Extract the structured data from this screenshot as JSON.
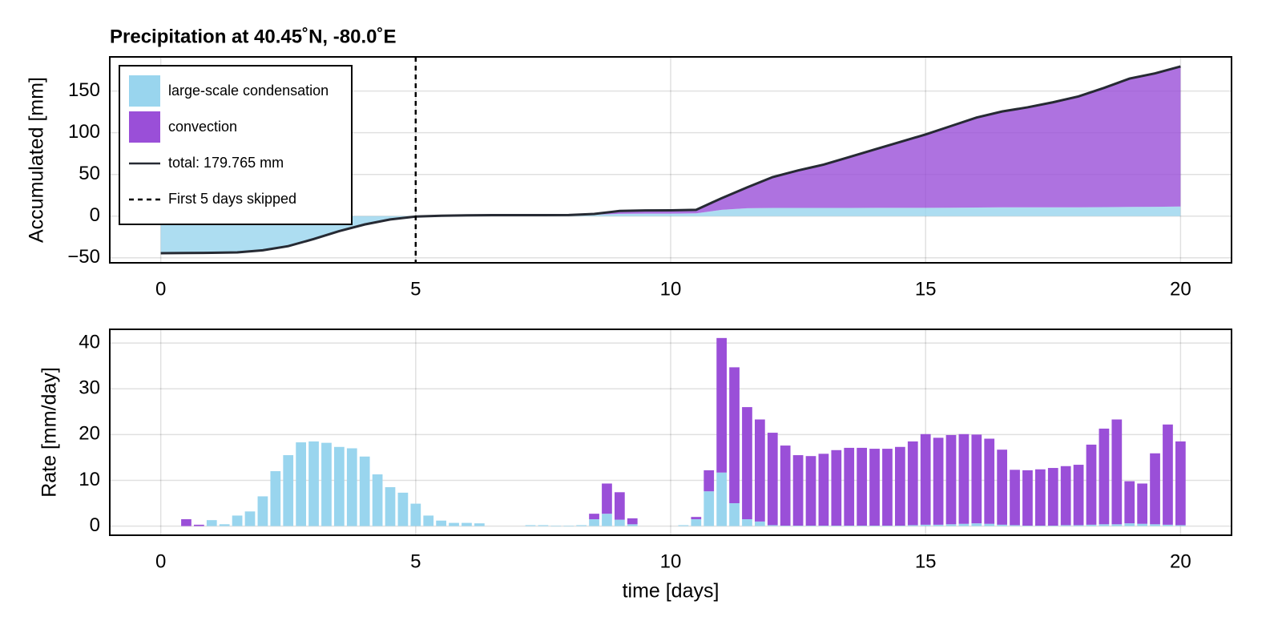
{
  "chart_data": [
    {
      "type": "area",
      "title": "Precipitation at 40.45˚N, -80.0˚E",
      "ylabel": "Accumulated [mm]",
      "x": [
        0,
        0.5,
        1,
        1.5,
        2,
        2.5,
        3,
        3.5,
        4,
        4.5,
        5,
        5.5,
        6,
        6.5,
        7,
        7.5,
        8,
        8.5,
        9,
        9.5,
        10,
        10.5,
        11,
        11.5,
        12,
        12.5,
        13,
        13.5,
        14,
        14.5,
        15,
        15.5,
        16,
        16.5,
        17,
        17.5,
        18,
        18.5,
        19,
        19.5,
        20
      ],
      "series": [
        {
          "name": "large-scale condensation",
          "kind": "area",
          "color": "#99d5ee",
          "values": [
            -44.5,
            -44.2,
            -44,
            -43.5,
            -41,
            -36,
            -27.5,
            -18,
            -10,
            -4,
            -0.5,
            0.5,
            1,
            1.2,
            1.2,
            1.2,
            1.3,
            1.8,
            2.7,
            3.0,
            3.0,
            3.3,
            7.5,
            9.5,
            9.8,
            9.8,
            9.8,
            9.8,
            9.9,
            9.9,
            10,
            10.1,
            10.3,
            10.5,
            10.5,
            10.6,
            10.6,
            10.8,
            11,
            11.2,
            11.5
          ]
        },
        {
          "name": "convection",
          "kind": "area",
          "color": "#9a4fd8",
          "values": [
            0,
            0,
            0,
            0,
            0,
            0,
            0,
            0,
            0,
            0,
            0,
            0,
            0,
            0,
            0,
            0,
            0,
            0.8,
            3.5,
            3.8,
            4,
            4.3,
            14,
            25,
            37,
            45,
            52,
            61,
            70,
            79,
            88,
            98,
            108,
            115,
            120,
            126,
            133,
            143,
            154,
            160,
            168
          ]
        },
        {
          "name": "total: 179.765 mm",
          "kind": "line",
          "color": "#262a33",
          "values": [
            -44.5,
            -44.2,
            -44,
            -43.5,
            -41,
            -36,
            -27.5,
            -18,
            -10,
            -4,
            -0.5,
            0.5,
            1,
            1.2,
            1.2,
            1.2,
            1.3,
            2.6,
            6.2,
            6.8,
            7,
            7.6,
            21.5,
            34.5,
            46.8,
            54.8,
            61.8,
            70.8,
            79.9,
            88.9,
            98,
            108.1,
            118.3,
            125.5,
            130.5,
            136.6,
            143.6,
            153.8,
            165,
            171.2,
            179.5
          ]
        }
      ],
      "vline": {
        "x": 5,
        "label": "First 5 days skipped"
      },
      "xlim": [
        -1,
        21
      ],
      "xticks": [
        0,
        5,
        10,
        15,
        20
      ],
      "ylim": [
        -56,
        191
      ],
      "yticks": [
        {
          "value": -50,
          "label": "−50"
        },
        0,
        50,
        100,
        150
      ],
      "grid": true,
      "legend": "top-left"
    },
    {
      "type": "bar",
      "xlabel": "time [days]",
      "ylabel": "Rate [mm/day]",
      "x": [
        0,
        0.25,
        0.5,
        0.75,
        1,
        1.25,
        1.5,
        1.75,
        2,
        2.25,
        2.5,
        2.75,
        3,
        3.25,
        3.5,
        3.75,
        4,
        4.25,
        4.5,
        4.75,
        5,
        5.25,
        5.5,
        5.75,
        6,
        6.25,
        6.5,
        6.75,
        7,
        7.25,
        7.5,
        7.75,
        8,
        8.25,
        8.5,
        8.75,
        9,
        9.25,
        9.5,
        9.75,
        10,
        10.25,
        10.5,
        10.75,
        11,
        11.25,
        11.5,
        11.75,
        12,
        12.25,
        12.5,
        12.75,
        13,
        13.25,
        13.5,
        13.75,
        14,
        14.25,
        14.5,
        14.75,
        15,
        15.25,
        15.5,
        15.75,
        16,
        16.25,
        16.5,
        16.75,
        17,
        17.25,
        17.5,
        17.75,
        18,
        18.25,
        18.5,
        18.75,
        19,
        19.25,
        19.5,
        19.75,
        20
      ],
      "series": [
        {
          "name": "large-scale condensation",
          "color": "#99d5ee",
          "values": [
            0,
            0,
            0,
            0,
            1.3,
            0.4,
            2.3,
            3.2,
            6.5,
            12,
            15.5,
            18.3,
            18.5,
            18.2,
            17.3,
            17,
            15.2,
            11.3,
            8.5,
            7.3,
            4.9,
            2.3,
            1.2,
            0.7,
            0.7,
            0.6,
            0,
            0,
            0,
            0.2,
            0.2,
            0.1,
            0.1,
            0.2,
            1.5,
            2.7,
            1.4,
            0.4,
            0,
            0,
            0,
            0.2,
            1.5,
            7.6,
            11.7,
            5,
            1.5,
            1,
            0.2,
            0.1,
            0.1,
            0.1,
            0.1,
            0.1,
            0.1,
            0.1,
            0.1,
            0.1,
            0.1,
            0.2,
            0.3,
            0.3,
            0.4,
            0.5,
            0.6,
            0.5,
            0.3,
            0.2,
            0.1,
            0.1,
            0.1,
            0.2,
            0.2,
            0.3,
            0.4,
            0.4,
            0.6,
            0.5,
            0.4,
            0.3,
            0.2
          ]
        },
        {
          "name": "convection",
          "color": "#9a4fd8",
          "values": [
            0,
            0,
            1.5,
            0.3,
            0,
            0,
            0,
            0,
            0,
            0,
            0,
            0,
            0,
            0,
            0,
            0,
            0,
            0,
            0,
            0,
            0,
            0,
            0,
            0,
            0,
            0,
            0,
            0,
            0,
            0,
            0,
            0,
            0,
            0,
            1.2,
            6.6,
            6,
            1.3,
            0,
            0,
            0,
            0,
            0.5,
            4.6,
            29.4,
            29.7,
            24.5,
            22.3,
            20.2,
            17.5,
            15.4,
            15.2,
            15.7,
            16.5,
            17,
            17,
            16.8,
            16.8,
            17.2,
            18.3,
            19.8,
            19,
            19.5,
            19.6,
            19.4,
            18.6,
            16.4,
            12.1,
            12.1,
            12.3,
            12.6,
            12.9,
            13.2,
            17.5,
            20.9,
            22.9,
            9.2,
            8.8,
            15.5,
            21.9,
            18.3
          ]
        }
      ],
      "xlim": [
        -1,
        21
      ],
      "xticks": [
        0,
        5,
        10,
        15,
        20
      ],
      "ylim": [
        -2,
        43
      ],
      "yticks": [
        0,
        10,
        20,
        30,
        40
      ],
      "grid": true
    }
  ]
}
